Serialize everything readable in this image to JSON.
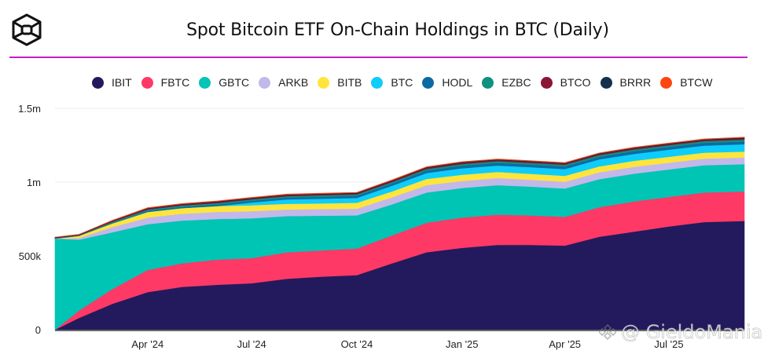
{
  "header": {
    "logo_icon": "cube-logo-icon",
    "title": "Spot Bitcoin ETF On-Chain Holdings in BTC (Daily)",
    "rule_color": "#c81ec9"
  },
  "watermark": {
    "text": "@ GieldoMania",
    "icon": "binance-diamond-icon"
  },
  "chart_data": {
    "type": "area",
    "stacked": true,
    "title": "Spot Bitcoin ETF On-Chain Holdings in BTC (Daily)",
    "xlabel": "",
    "ylabel": "",
    "ylim": [
      0,
      1500000
    ],
    "yticks": [
      0,
      500000,
      1000000,
      1500000
    ],
    "ytick_labels": [
      "0",
      "500k",
      "1m",
      "1.5m"
    ],
    "xticks": [
      "2024-04-01",
      "2024-07-01",
      "2024-10-01",
      "2025-01-01",
      "2025-04-01",
      "2025-07-01"
    ],
    "xtick_labels": [
      "Apr '24",
      "Jul '24",
      "Oct '24",
      "Jan '25",
      "Apr '25",
      "Jul '25"
    ],
    "xlim": [
      "2024-01-11",
      "2025-09-05"
    ],
    "grid": true,
    "legend_position": "top",
    "x": [
      "2024-01-11",
      "2024-02-01",
      "2024-03-01",
      "2024-04-01",
      "2024-05-01",
      "2024-06-01",
      "2024-07-01",
      "2024-08-01",
      "2024-09-01",
      "2024-10-01",
      "2024-11-01",
      "2024-12-01",
      "2025-01-01",
      "2025-02-01",
      "2025-03-01",
      "2025-04-01",
      "2025-05-01",
      "2025-06-01",
      "2025-07-01",
      "2025-08-01",
      "2025-09-05"
    ],
    "series": [
      {
        "name": "IBIT",
        "color": "#221a5c",
        "values": [
          0,
          80000,
          175000,
          255000,
          290000,
          305000,
          315000,
          345000,
          360000,
          370000,
          450000,
          525000,
          555000,
          575000,
          575000,
          570000,
          630000,
          665000,
          700000,
          730000,
          737000
        ]
      },
      {
        "name": "FBTC",
        "color": "#ff3966",
        "values": [
          0,
          50000,
          100000,
          150000,
          160000,
          170000,
          170000,
          180000,
          178000,
          180000,
          190000,
          200000,
          205000,
          205000,
          200000,
          195000,
          200000,
          205000,
          200000,
          200000,
          200000
        ]
      },
      {
        "name": "GBTC",
        "color": "#00c4b4",
        "values": [
          617000,
          480000,
          385000,
          310000,
          290000,
          275000,
          270000,
          245000,
          235000,
          225000,
          210000,
          205000,
          200000,
          200000,
          195000,
          192000,
          190000,
          188000,
          186000,
          185000,
          185000
        ]
      },
      {
        "name": "ARKB",
        "color": "#c3b8ea",
        "values": [
          0,
          12000,
          35000,
          45000,
          46000,
          48000,
          48000,
          45000,
          45000,
          45000,
          48000,
          50000,
          48000,
          48000,
          47000,
          46000,
          47000,
          47000,
          46000,
          45000,
          45000
        ]
      },
      {
        "name": "BITB",
        "color": "#ffe53b",
        "values": [
          0,
          14000,
          25000,
          38000,
          38000,
          40000,
          40000,
          38000,
          38000,
          40000,
          40000,
          42000,
          42000,
          41000,
          40000,
          40000,
          40000,
          40000,
          40000,
          40000,
          40000
        ]
      },
      {
        "name": "BTC",
        "color": "#0ecdfa",
        "values": [
          0,
          0,
          0,
          0,
          0,
          0,
          20000,
          30000,
          32000,
          33000,
          38000,
          40000,
          44000,
          44000,
          45000,
          46000,
          47000,
          47000,
          48000,
          48000,
          50000
        ]
      },
      {
        "name": "HODL",
        "color": "#0b6aa4",
        "values": [
          2000,
          2000,
          5000,
          8000,
          9000,
          10000,
          10000,
          12000,
          13000,
          14000,
          15000,
          16000,
          17000,
          17000,
          17000,
          17000,
          17000,
          18000,
          18000,
          18000,
          18000
        ]
      },
      {
        "name": "EZBC",
        "color": "#0f9180",
        "values": [
          2000,
          2000,
          6000,
          8000,
          9000,
          10000,
          10000,
          10000,
          10000,
          10000,
          10000,
          11000,
          12000,
          12000,
          12000,
          12000,
          12000,
          12000,
          12000,
          12000,
          13000
        ]
      },
      {
        "name": "BTCO",
        "color": "#8a1535",
        "values": [
          3000,
          3000,
          5000,
          6000,
          6000,
          7000,
          6000,
          6000,
          6000,
          6000,
          7000,
          7000,
          8000,
          7000,
          7000,
          7000,
          7000,
          7000,
          7000,
          7000,
          8000
        ]
      },
      {
        "name": "BRRR",
        "color": "#14304a",
        "values": [
          2000,
          2000,
          3000,
          4000,
          4000,
          5000,
          5000,
          5000,
          5000,
          5000,
          5000,
          5000,
          5000,
          5000,
          5000,
          5000,
          5000,
          5000,
          5000,
          5000,
          6000
        ]
      },
      {
        "name": "BTCW",
        "color": "#ff4413",
        "values": [
          1000,
          1000,
          2000,
          3000,
          3000,
          3000,
          3000,
          3000,
          3000,
          3000,
          3000,
          3000,
          3000,
          3000,
          3000,
          3000,
          3000,
          3000,
          3000,
          3000,
          3000
        ]
      }
    ]
  }
}
